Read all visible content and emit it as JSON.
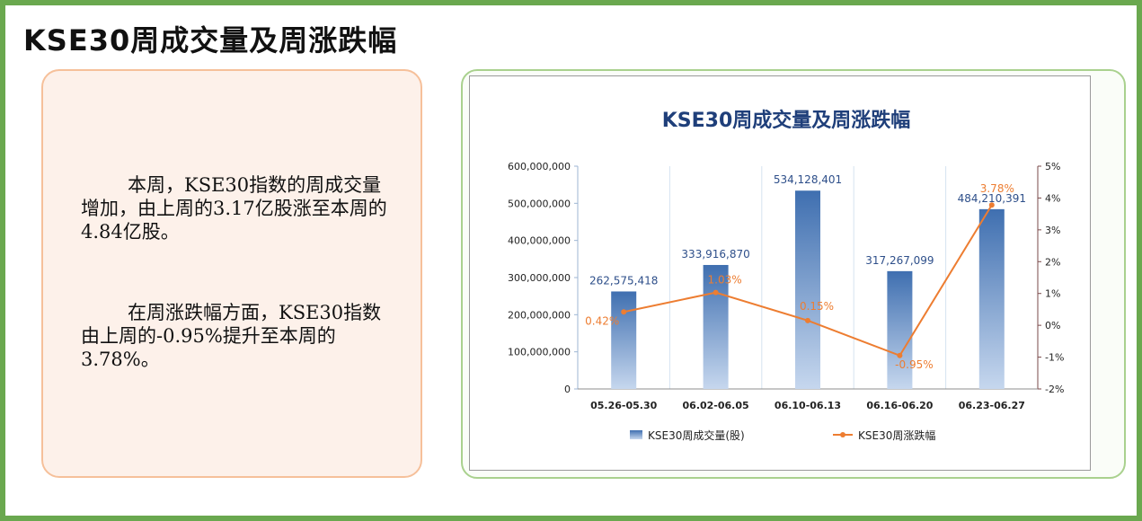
{
  "page": {
    "title": "KSE30周成交量及周涨跌幅",
    "paragraph1": "本周，KSE30指数的周成交量增加，由上周的3.17亿股涨至本周的4.84亿股。",
    "paragraph2": "在周涨跌幅方面，KSE30指数由上周的-0.95%提升至本周的3.78%。"
  },
  "colors": {
    "frame": "#6aa84f",
    "bar_top": "#3f6fb0",
    "bar_bottom": "#c6d7ee",
    "line": "#ed7d31",
    "chart_title": "#1f3f7a"
  },
  "chart_data": {
    "type": "bar",
    "title": "KSE30周成交量及周涨跌幅",
    "categories": [
      "05.26-05.30",
      "06.02-06.05",
      "06.10-06.13",
      "06.16-06.20",
      "06.23-06.27"
    ],
    "series": [
      {
        "name": "KSE30周成交量(股)",
        "type": "bar",
        "axis": "left",
        "values": [
          262575418,
          333916870,
          534128401,
          317267099,
          484210391
        ],
        "labels": [
          "262,575,418",
          "333,916,870",
          "534,128,401",
          "317,267,099",
          "484,210,391"
        ]
      },
      {
        "name": "KSE30周涨跌幅",
        "type": "line",
        "axis": "right",
        "values": [
          0.42,
          1.03,
          0.15,
          -0.95,
          3.78
        ],
        "labels": [
          "0.42%",
          "1.03%",
          "0.15%",
          "-0.95%",
          "3.78%"
        ]
      }
    ],
    "y_left": {
      "lim": [
        0,
        600000000
      ],
      "ticks": [
        0,
        100000000,
        200000000,
        300000000,
        400000000,
        500000000,
        600000000
      ],
      "tick_labels": [
        "0",
        "100,000,000",
        "200,000,000",
        "300,000,000",
        "400,000,000",
        "500,000,000",
        "600,000,000"
      ]
    },
    "y_right": {
      "lim": [
        -2,
        5
      ],
      "ticks": [
        -2,
        -1,
        0,
        1,
        2,
        3,
        4,
        5
      ],
      "tick_labels": [
        "-2%",
        "-1%",
        "0%",
        "1%",
        "2%",
        "3%",
        "4%",
        "5%"
      ]
    },
    "grid": false,
    "legend_position": "bottom"
  }
}
